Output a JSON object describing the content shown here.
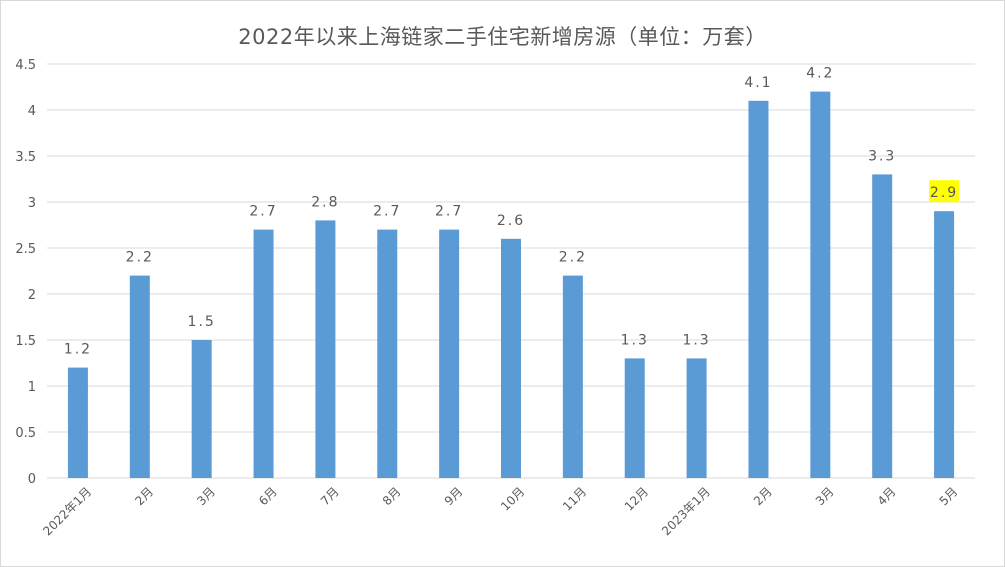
{
  "chart_data": {
    "type": "bar",
    "title": "2022年以来上海链家二手住宅新增房源（单位：万套）",
    "categories": [
      "2022年1月",
      "2月",
      "3月",
      "6月",
      "7月",
      "8月",
      "9月",
      "10月",
      "11月",
      "12月",
      "2023年1月",
      "2月",
      "3月",
      "4月",
      "5月"
    ],
    "values": [
      1.2,
      2.2,
      1.5,
      2.7,
      2.8,
      2.7,
      2.7,
      2.6,
      2.2,
      1.3,
      1.3,
      4.1,
      4.2,
      3.3,
      2.9
    ],
    "data_labels": [
      "1.2",
      "2.2",
      "1.5",
      "2.7",
      "2.8",
      "2.7",
      "2.7",
      "2.6",
      "2.2",
      "1.3",
      "1.3",
      "4.1",
      "4.2",
      "3.3",
      "2.9"
    ],
    "y_ticks": [
      "0",
      "0.5",
      "1",
      "1.5",
      "2",
      "2.5",
      "3",
      "3.5",
      "4",
      "4.5"
    ],
    "ylim": [
      0,
      4.5
    ],
    "grid": true,
    "legend": "none",
    "colors": {
      "bar": "#5b9bd5",
      "grid": "#d9d9d9",
      "text": "#595959",
      "highlight": "#ffff00"
    },
    "highlighted_label_index": 14
  }
}
